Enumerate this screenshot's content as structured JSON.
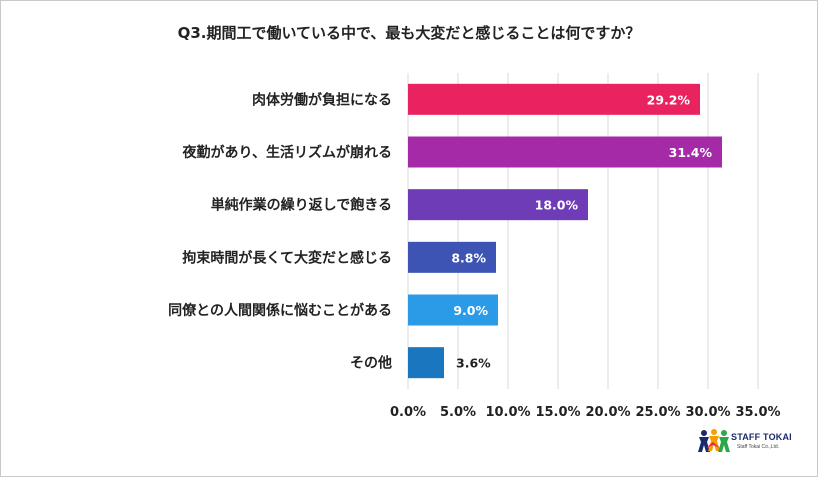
{
  "chart_data": {
    "type": "bar",
    "orientation": "horizontal",
    "title": "Q3.期間工で働いている中で、最も大変だと感じることは何ですか？",
    "categories": [
      "肉体労働が負担になる",
      "夜勤があり、生活リズムが崩れる",
      "単純作業の繰り返しで飽きる",
      "拘束時間が長くて大変だと感じる",
      "同僚との人間関係に悩むことがある",
      "その他"
    ],
    "values": [
      29.2,
      31.4,
      18.0,
      8.8,
      9.0,
      3.6
    ],
    "value_labels": [
      "29.2%",
      "31.4%",
      "18.0%",
      "8.8%",
      "9.0%",
      "3.6%"
    ],
    "colors": [
      "#e8235f",
      "#a42aa8",
      "#6f3cb8",
      "#3d54b5",
      "#2b9be8",
      "#1b76c0"
    ],
    "x_ticks": [
      "0.0%",
      "5.0%",
      "10.0%",
      "15.0%",
      "20.0%",
      "25.0%",
      "30.0%",
      "35.0%"
    ],
    "xlim": [
      0,
      35
    ],
    "grid": true,
    "xlabel": "",
    "ylabel": ""
  },
  "logo": {
    "name": "STAFF TOKAI",
    "subtitle": "Staff Tokai Co.,Ltd."
  }
}
